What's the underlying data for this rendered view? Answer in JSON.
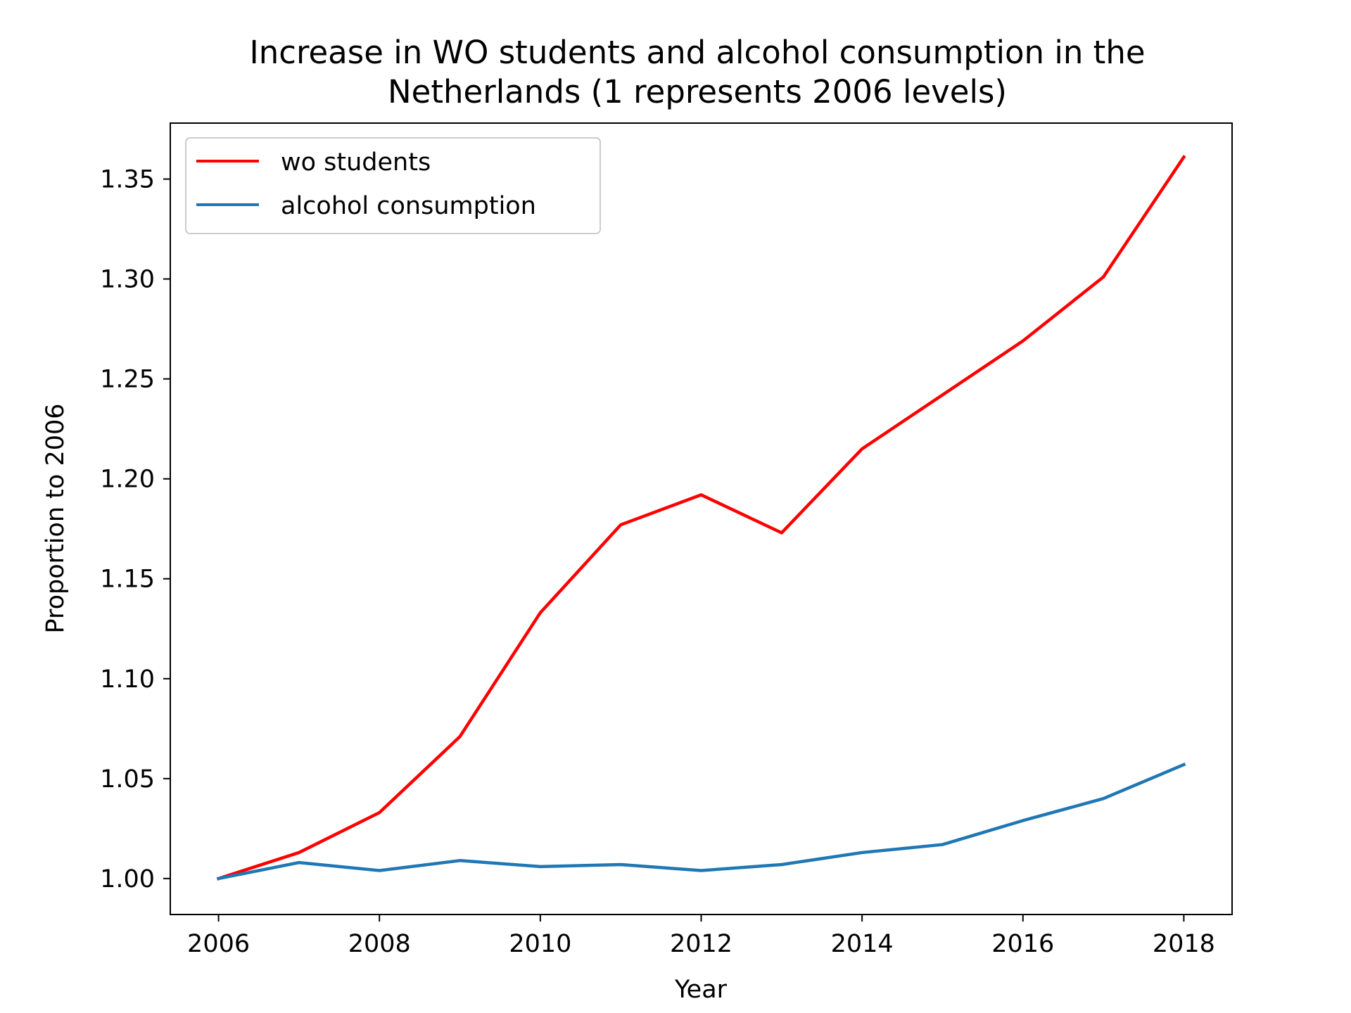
{
  "chart_data": {
    "type": "line",
    "title": "Increase in WO students and alcohol consumption in the Netherlands (1 represents 2006 levels)",
    "title_lines": [
      "Increase in WO students and alcohol consumption in the",
      "Netherlands (1 represents 2006 levels)"
    ],
    "xlabel": "Year",
    "ylabel": "Proportion to 2006",
    "x": [
      2006,
      2007,
      2008,
      2009,
      2010,
      2011,
      2012,
      2013,
      2014,
      2015,
      2016,
      2017,
      2018
    ],
    "xlim": [
      2005.4,
      2018.6
    ],
    "ylim": [
      0.982,
      1.378
    ],
    "x_ticks": [
      2006,
      2008,
      2010,
      2012,
      2014,
      2016,
      2018
    ],
    "y_ticks": [
      1.0,
      1.05,
      1.1,
      1.15,
      1.2,
      1.25,
      1.3,
      1.35
    ],
    "y_tick_labels": [
      "1.00",
      "1.05",
      "1.10",
      "1.15",
      "1.20",
      "1.25",
      "1.30",
      "1.35"
    ],
    "grid": false,
    "legend_position": "top-left",
    "series": [
      {
        "name": "wo students",
        "color": "#ff0000",
        "values": [
          1.0,
          1.013,
          1.033,
          1.071,
          1.133,
          1.177,
          1.192,
          1.173,
          1.215,
          1.242,
          1.269,
          1.301,
          1.361
        ]
      },
      {
        "name": "alcohol consumption",
        "color": "#1f77b4",
        "values": [
          1.0,
          1.008,
          1.004,
          1.009,
          1.006,
          1.007,
          1.004,
          1.007,
          1.013,
          1.017,
          1.029,
          1.04,
          1.057
        ]
      }
    ]
  }
}
